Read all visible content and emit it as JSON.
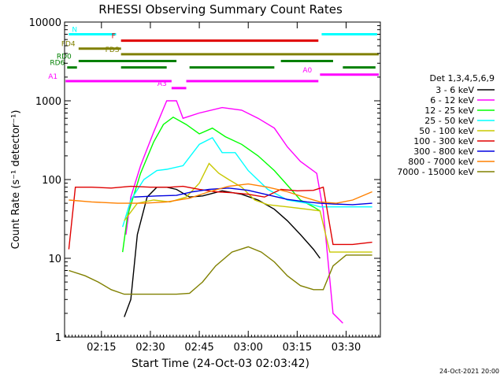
{
  "chart_data": {
    "type": "line",
    "title": "RHESSI Observing Summary Count Rates",
    "xlabel": "Start Time (24-Oct-03 02:03:42)",
    "ylabel": "Count Rate (s⁻¹ detector⁻¹)",
    "y_scale": "log",
    "ylim": [
      1,
      10000
    ],
    "xlim": [
      "02:03:42",
      "03:40:30"
    ],
    "x_ticks": [
      "02:15",
      "02:30",
      "02:45",
      "03:00",
      "03:15",
      "03:30"
    ],
    "y_ticks": [
      "1",
      "10",
      "100",
      "1000",
      "10000"
    ],
    "footer": "24-Oct-2021 20:00",
    "legend_title": "Det 1,3,4,5,6,9",
    "legend_placement": "right",
    "series": [
      {
        "name": "3 - 6 keV",
        "color": "#000000",
        "points": [
          [
            "02:22:00",
            1.8
          ],
          [
            "02:24:00",
            3
          ],
          [
            "02:26:00",
            20
          ],
          [
            "02:29:00",
            60
          ],
          [
            "02:32:00",
            80
          ],
          [
            "02:35:00",
            80
          ],
          [
            "02:38:00",
            75
          ],
          [
            "02:42:00",
            60
          ],
          [
            "02:46:00",
            62
          ],
          [
            "02:52:00",
            72
          ],
          [
            "02:58:00",
            65
          ],
          [
            "03:03:00",
            55
          ],
          [
            "03:08:00",
            42
          ],
          [
            "03:12:00",
            30
          ],
          [
            "03:16:00",
            20
          ],
          [
            "03:20:00",
            13
          ],
          [
            "03:22:00",
            10
          ]
        ]
      },
      {
        "name": "6 - 12 keV",
        "color": "#ff00ff",
        "points": [
          [
            "02:22:30",
            20
          ],
          [
            "02:24:00",
            60
          ],
          [
            "02:27:00",
            150
          ],
          [
            "02:31:00",
            400
          ],
          [
            "02:35:00",
            1000
          ],
          [
            "02:38:00",
            1000
          ],
          [
            "02:40:00",
            600
          ],
          [
            "02:45:00",
            700
          ],
          [
            "02:52:00",
            820
          ],
          [
            "02:58:00",
            760
          ],
          [
            "03:03:00",
            600
          ],
          [
            "03:08:00",
            450
          ],
          [
            "03:12:00",
            260
          ],
          [
            "03:16:00",
            170
          ],
          [
            "03:21:00",
            120
          ],
          [
            "03:23:00",
            40
          ],
          [
            "03:26:00",
            2
          ],
          [
            "03:29:00",
            1.5
          ]
        ]
      },
      {
        "name": "12 - 25 keV",
        "color": "#00ff00",
        "points": [
          [
            "02:21:30",
            12
          ],
          [
            "02:23:00",
            35
          ],
          [
            "02:27:00",
            120
          ],
          [
            "02:31:00",
            300
          ],
          [
            "02:34:00",
            500
          ],
          [
            "02:37:00",
            620
          ],
          [
            "02:41:00",
            500
          ],
          [
            "02:45:00",
            380
          ],
          [
            "02:49:00",
            450
          ],
          [
            "02:53:00",
            350
          ],
          [
            "02:58:00",
            280
          ],
          [
            "03:03:00",
            200
          ],
          [
            "03:08:00",
            130
          ],
          [
            "03:12:00",
            85
          ],
          [
            "03:16:00",
            55
          ],
          [
            "03:20:00",
            45
          ],
          [
            "03:22:00",
            40
          ]
        ]
      },
      {
        "name": "25 - 50 keV",
        "color": "#00ffff",
        "points": [
          [
            "02:21:30",
            25
          ],
          [
            "02:24:00",
            55
          ],
          [
            "02:28:00",
            100
          ],
          [
            "02:32:00",
            130
          ],
          [
            "02:35:00",
            135
          ],
          [
            "02:40:00",
            150
          ],
          [
            "02:45:00",
            280
          ],
          [
            "02:49:00",
            340
          ],
          [
            "02:52:00",
            220
          ],
          [
            "02:56:00",
            220
          ],
          [
            "03:00:00",
            130
          ],
          [
            "03:06:00",
            75
          ],
          [
            "03:12:00",
            55
          ],
          [
            "03:18:00",
            50
          ],
          [
            "03:22:00",
            45
          ],
          [
            "03:25:00",
            45
          ],
          [
            "03:30:00",
            45
          ],
          [
            "03:35:00",
            45
          ],
          [
            "03:38:00",
            45
          ]
        ]
      },
      {
        "name": "50 - 100 keV",
        "color": "#c8c800",
        "points": [
          [
            "02:22:00",
            30
          ],
          [
            "02:26:00",
            50
          ],
          [
            "02:31:00",
            55
          ],
          [
            "02:36:00",
            52
          ],
          [
            "02:41:00",
            60
          ],
          [
            "02:45:00",
            90
          ],
          [
            "02:48:00",
            160
          ],
          [
            "02:51:00",
            120
          ],
          [
            "02:54:00",
            100
          ],
          [
            "02:58:00",
            80
          ],
          [
            "03:02:00",
            55
          ],
          [
            "03:06:00",
            48
          ],
          [
            "03:12:00",
            45
          ],
          [
            "03:18:00",
            42
          ],
          [
            "03:22:00",
            40
          ],
          [
            "03:25:00",
            12
          ],
          [
            "03:30:00",
            12
          ],
          [
            "03:38:00",
            12
          ]
        ]
      },
      {
        "name": "100 - 300 keV",
        "color": "#e00000",
        "points": [
          [
            "02:05:00",
            13
          ],
          [
            "02:07:00",
            80
          ],
          [
            "02:12:00",
            80
          ],
          [
            "02:18:00",
            78
          ],
          [
            "02:24:00",
            82
          ],
          [
            "02:30:00",
            80
          ],
          [
            "02:36:00",
            80
          ],
          [
            "02:40:00",
            82
          ],
          [
            "02:45:00",
            75
          ],
          [
            "02:50:00",
            70
          ],
          [
            "02:55:00",
            68
          ],
          [
            "03:00:00",
            65
          ],
          [
            "03:05:00",
            60
          ],
          [
            "03:10:00",
            75
          ],
          [
            "03:15:00",
            72
          ],
          [
            "03:20:00",
            73
          ],
          [
            "03:23:00",
            80
          ],
          [
            "03:26:00",
            15
          ],
          [
            "03:32:00",
            15
          ],
          [
            "03:38:00",
            16
          ]
        ]
      },
      {
        "name": "300 - 800 keV",
        "color": "#0000e0",
        "points": [
          [
            "02:25:00",
            60
          ],
          [
            "02:32:00",
            62
          ],
          [
            "02:38:00",
            63
          ],
          [
            "02:43:00",
            70
          ],
          [
            "02:48:00",
            75
          ],
          [
            "02:54:00",
            78
          ],
          [
            "03:00:00",
            73
          ],
          [
            "03:06:00",
            64
          ],
          [
            "03:12:00",
            56
          ],
          [
            "03:18:00",
            52
          ],
          [
            "03:22:00",
            50
          ],
          [
            "03:26:00",
            49
          ],
          [
            "03:32:00",
            48
          ],
          [
            "03:38:00",
            50
          ]
        ]
      },
      {
        "name": "800 - 7000 keV",
        "color": "#ff8000",
        "points": [
          [
            "02:05:00",
            55
          ],
          [
            "02:12:00",
            52
          ],
          [
            "02:20:00",
            50
          ],
          [
            "02:28:00",
            50
          ],
          [
            "02:35:00",
            52
          ],
          [
            "02:42:00",
            58
          ],
          [
            "02:48:00",
            70
          ],
          [
            "02:54:00",
            82
          ],
          [
            "03:00:00",
            88
          ],
          [
            "03:06:00",
            80
          ],
          [
            "03:12:00",
            70
          ],
          [
            "03:17:00",
            60
          ],
          [
            "03:22:00",
            52
          ],
          [
            "03:27:00",
            50
          ],
          [
            "03:32:00",
            55
          ],
          [
            "03:38:00",
            70
          ]
        ]
      },
      {
        "name": "7000 - 15000 keV",
        "color": "#808000",
        "points": [
          [
            "02:05:00",
            7
          ],
          [
            "02:10:00",
            6
          ],
          [
            "02:14:00",
            5
          ],
          [
            "02:18:00",
            4
          ],
          [
            "02:22:00",
            3.5
          ],
          [
            "02:28:00",
            3.5
          ],
          [
            "02:34:00",
            3.5
          ],
          [
            "02:38:00",
            3.5
          ],
          [
            "02:42:00",
            3.6
          ],
          [
            "02:46:00",
            5
          ],
          [
            "02:50:00",
            8
          ],
          [
            "02:55:00",
            12
          ],
          [
            "03:00:00",
            14
          ],
          [
            "03:04:00",
            12
          ],
          [
            "03:08:00",
            9
          ],
          [
            "03:12:00",
            6
          ],
          [
            "03:16:00",
            4.5
          ],
          [
            "03:20:00",
            4
          ],
          [
            "03:23:00",
            4
          ],
          [
            "03:26:00",
            8
          ],
          [
            "03:30:00",
            11
          ],
          [
            "03:38:00",
            11
          ]
        ]
      }
    ],
    "flag_bars": [
      {
        "label": "N",
        "color": "#00ffff",
        "value": 7000,
        "segments": [
          [
            "02:05:00",
            "02:19:30"
          ],
          [
            "03:22:30",
            "03:39:30"
          ]
        ]
      },
      {
        "label": "F",
        "color": "#e00000",
        "value": 5800,
        "segments": [
          [
            "02:21:00",
            "03:21:30"
          ]
        ]
      },
      {
        "label": "FD4",
        "color": "#808000",
        "value": 4600,
        "segments": [
          [
            "02:08:00",
            "02:21:00"
          ]
        ]
      },
      {
        "label": "FDS",
        "color": "#808000",
        "value": 3900,
        "segments": [
          [
            "02:21:00",
            "03:40:00"
          ]
        ]
      },
      {
        "label": "RD0",
        "color": "#008000",
        "value": 3200,
        "segments": [
          [
            "02:08:00",
            "02:38:00"
          ],
          [
            "03:10:00",
            "03:26:00"
          ]
        ]
      },
      {
        "label": "RD6",
        "color": "#008000",
        "value": 2650,
        "segments": [
          [
            "02:04:30",
            "02:07:30"
          ],
          [
            "02:21:00",
            "02:35:00"
          ],
          [
            "02:42:00",
            "03:08:00"
          ],
          [
            "03:29:00",
            "03:39:00"
          ]
        ]
      },
      {
        "label": "A0",
        "color": "#ff00ff",
        "value": 2150,
        "segments": [
          [
            "03:22:00",
            "03:40:00"
          ]
        ]
      },
      {
        "label": "A1",
        "color": "#ff00ff",
        "value": 1780,
        "segments": [
          [
            "02:04:00",
            "02:36:30"
          ],
          [
            "02:41:00",
            "03:21:30"
          ]
        ]
      },
      {
        "label": "A3",
        "color": "#ff00ff",
        "value": 1450,
        "segments": [
          [
            "02:36:30",
            "02:41:00"
          ]
        ]
      }
    ],
    "grid": false
  }
}
